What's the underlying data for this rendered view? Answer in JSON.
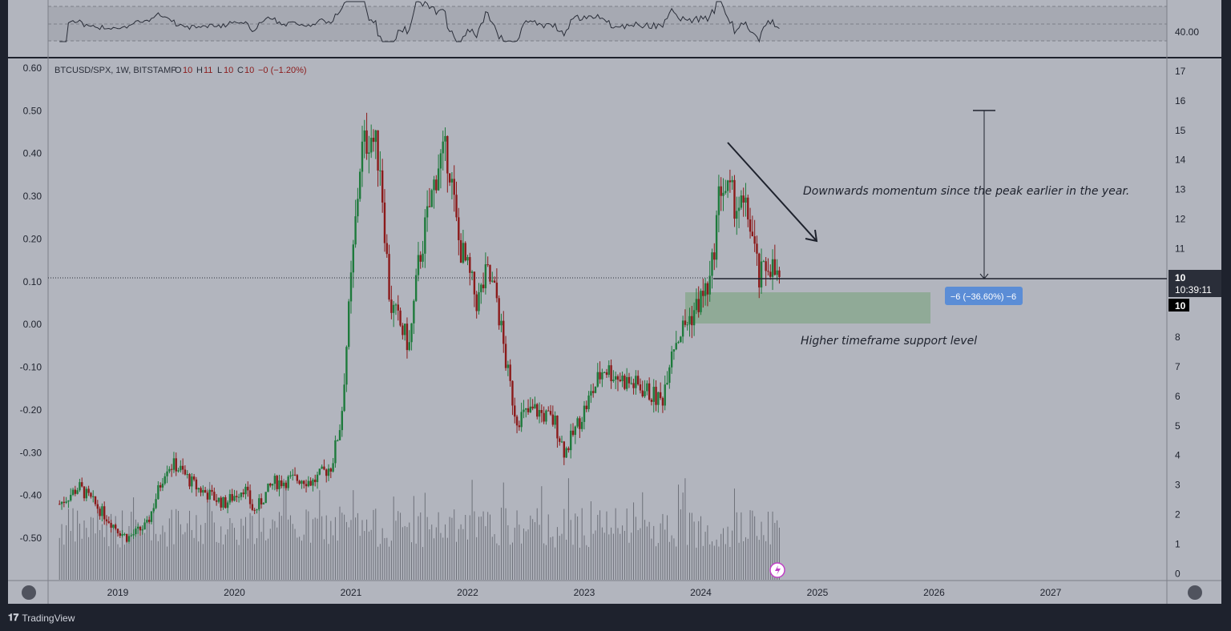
{
  "chart_data": {
    "type": "candlestick",
    "symbol_header": "BTCUSD/SPX, 1W, BITSTAMP",
    "ohlc": {
      "o_label": "O",
      "o": "10",
      "h_label": "H",
      "h": "11",
      "l_label": "L",
      "l": "10",
      "c_label": "C",
      "c": "10",
      "change": "−0 (−1.20%)"
    },
    "left_axis_ticks": [
      "0.60",
      "0.50",
      "0.40",
      "0.30",
      "0.20",
      "0.10",
      "0.00",
      "-0.10",
      "-0.20",
      "-0.30",
      "-0.40",
      "-0.50"
    ],
    "right_axis_ticks": [
      "17",
      "16",
      "15",
      "14",
      "13",
      "12",
      "11",
      "10",
      "9",
      "8",
      "7",
      "6",
      "5",
      "4",
      "3",
      "2",
      "1",
      "0"
    ],
    "x_axis_ticks": [
      "2019",
      "2020",
      "2021",
      "2022",
      "2023",
      "2024",
      "2025",
      "2026",
      "2027"
    ],
    "rsi_axis_label": "40.00",
    "price_label": {
      "value": "10",
      "countdown": "10:39:11"
    },
    "price_label_secondary": "10",
    "measure_label": "−6 (−36.60%) −6",
    "annotations": {
      "momentum": "Downwards momentum since the peak earlier in the year.",
      "support": "Higher timeframe support level"
    },
    "price_path_keypoints": [
      {
        "date": "2018-07",
        "value": -0.42
      },
      {
        "date": "2018-09",
        "value": -0.38
      },
      {
        "date": "2018-11",
        "value": -0.43
      },
      {
        "date": "2019-01",
        "value": -0.48
      },
      {
        "date": "2019-02",
        "value": -0.5
      },
      {
        "date": "2019-04",
        "value": -0.47
      },
      {
        "date": "2019-06",
        "value": -0.33
      },
      {
        "date": "2019-07",
        "value": -0.33
      },
      {
        "date": "2019-09",
        "value": -0.38
      },
      {
        "date": "2019-12",
        "value": -0.42
      },
      {
        "date": "2020-02",
        "value": -0.38
      },
      {
        "date": "2020-03",
        "value": -0.44
      },
      {
        "date": "2020-05",
        "value": -0.37
      },
      {
        "date": "2020-08",
        "value": -0.36
      },
      {
        "date": "2020-09",
        "value": -0.37
      },
      {
        "date": "2020-11",
        "value": -0.33
      },
      {
        "date": "2020-12",
        "value": -0.22
      },
      {
        "date": "2021-01",
        "value": 0.1
      },
      {
        "date": "2021-02",
        "value": 0.4
      },
      {
        "date": "2021-03",
        "value": 0.45
      },
      {
        "date": "2021-04",
        "value": 0.38
      },
      {
        "date": "2021-05",
        "value": 0.05
      },
      {
        "date": "2021-07",
        "value": -0.05
      },
      {
        "date": "2021-08",
        "value": 0.15
      },
      {
        "date": "2021-10",
        "value": 0.38
      },
      {
        "date": "2021-11",
        "value": 0.4
      },
      {
        "date": "2021-12",
        "value": 0.2
      },
      {
        "date": "2022-02",
        "value": 0.05
      },
      {
        "date": "2022-03",
        "value": 0.12
      },
      {
        "date": "2022-04",
        "value": 0.06
      },
      {
        "date": "2022-05",
        "value": -0.1
      },
      {
        "date": "2022-06",
        "value": -0.22
      },
      {
        "date": "2022-08",
        "value": -0.2
      },
      {
        "date": "2022-10",
        "value": -0.23
      },
      {
        "date": "2022-11",
        "value": -0.3
      },
      {
        "date": "2023-01",
        "value": -0.2
      },
      {
        "date": "2023-03",
        "value": -0.1
      },
      {
        "date": "2023-05",
        "value": -0.13
      },
      {
        "date": "2023-07",
        "value": -0.15
      },
      {
        "date": "2023-09",
        "value": -0.18
      },
      {
        "date": "2023-10",
        "value": -0.05
      },
      {
        "date": "2023-12",
        "value": 0.02
      },
      {
        "date": "2024-02",
        "value": 0.1
      },
      {
        "date": "2024-03",
        "value": 0.33
      },
      {
        "date": "2024-04",
        "value": 0.3
      },
      {
        "date": "2024-06",
        "value": 0.25
      },
      {
        "date": "2024-07",
        "value": 0.1
      },
      {
        "date": "2024-08",
        "value": 0.15
      },
      {
        "date": "2024-09",
        "value": 0.1
      }
    ],
    "colors": {
      "up": "#1e7a3c",
      "down": "#8b1a1a",
      "background": "#b2b5be",
      "support_zone": "#8aa890",
      "measure_box": "#5b8dd6"
    }
  }
}
